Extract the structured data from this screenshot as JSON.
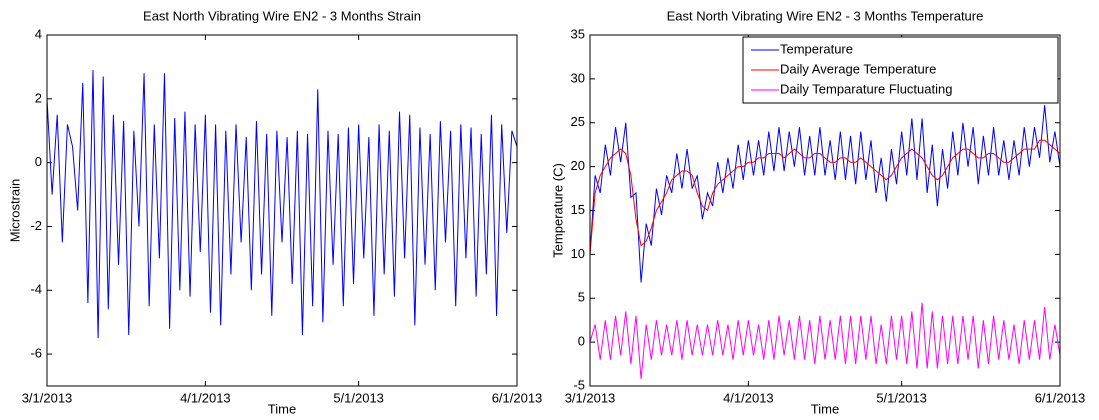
{
  "chart_data": [
    {
      "type": "line",
      "title": "East North Vibrating Wire EN2 - 3 Months Strain",
      "x_label": "Time",
      "y_label": "Microstrain",
      "x": [
        "2013-03-01",
        "2013-03-02",
        "2013-03-03",
        "2013-03-04",
        "2013-03-05",
        "2013-03-06",
        "2013-03-07",
        "2013-03-08",
        "2013-03-09",
        "2013-03-10",
        "2013-03-11",
        "2013-03-12",
        "2013-03-13",
        "2013-03-14",
        "2013-03-15",
        "2013-03-16",
        "2013-03-17",
        "2013-03-18",
        "2013-03-19",
        "2013-03-20",
        "2013-03-21",
        "2013-03-22",
        "2013-03-23",
        "2013-03-24",
        "2013-03-25",
        "2013-03-26",
        "2013-03-27",
        "2013-03-28",
        "2013-03-29",
        "2013-03-30",
        "2013-03-31",
        "2013-04-01",
        "2013-04-02",
        "2013-04-03",
        "2013-04-04",
        "2013-04-05",
        "2013-04-06",
        "2013-04-07",
        "2013-04-08",
        "2013-04-09",
        "2013-04-10",
        "2013-04-11",
        "2013-04-12",
        "2013-04-13",
        "2013-04-14",
        "2013-04-15",
        "2013-04-16",
        "2013-04-17",
        "2013-04-18",
        "2013-04-19",
        "2013-04-20",
        "2013-04-21",
        "2013-04-22",
        "2013-04-23",
        "2013-04-24",
        "2013-04-25",
        "2013-04-26",
        "2013-04-27",
        "2013-04-28",
        "2013-04-29",
        "2013-04-30",
        "2013-05-01",
        "2013-05-02",
        "2013-05-03",
        "2013-05-04",
        "2013-05-05",
        "2013-05-06",
        "2013-05-07",
        "2013-05-08",
        "2013-05-09",
        "2013-05-10",
        "2013-05-11",
        "2013-05-12",
        "2013-05-13",
        "2013-05-14",
        "2013-05-15",
        "2013-05-16",
        "2013-05-17",
        "2013-05-18",
        "2013-05-19",
        "2013-05-20",
        "2013-05-21",
        "2013-05-22",
        "2013-05-23",
        "2013-05-24",
        "2013-05-25",
        "2013-05-26",
        "2013-05-27",
        "2013-05-28",
        "2013-05-29",
        "2013-05-30",
        "2013-05-31",
        "2013-06-01"
      ],
      "xlim": [
        "2013-03-01",
        "2013-06-01"
      ],
      "xticks": [
        {
          "value": "2013-03-01",
          "label": "3/1/2013"
        },
        {
          "value": "2013-04-01",
          "label": "4/1/2013"
        },
        {
          "value": "2013-05-01",
          "label": "5/1/2013"
        },
        {
          "value": "2013-06-01",
          "label": "6/1/2013"
        }
      ],
      "ylim": [
        -7,
        4
      ],
      "yticks": [
        -6,
        -4,
        -2,
        0,
        2,
        4
      ],
      "series": [
        {
          "name": "Strain",
          "color": "#0000ff",
          "values": [
            2,
            -1,
            1.5,
            -2.5,
            1.2,
            0.5,
            -1.5,
            2.5,
            -4.4,
            2.9,
            -5.5,
            2.7,
            -4.6,
            1.5,
            -3.2,
            1.3,
            -5.4,
            1.0,
            -2.0,
            2.8,
            -4.5,
            1.2,
            -3.0,
            2.8,
            -5.2,
            1.4,
            -4.0,
            1.6,
            -4.2,
            1.2,
            -2.8,
            1.5,
            -4.7,
            1.2,
            -5.1,
            1.0,
            -3.5,
            1.2,
            -2.5,
            0.8,
            -4.0,
            1.3,
            -3.5,
            0.9,
            -4.8,
            1.0,
            -2.5,
            0.8,
            -3.8,
            1.0,
            -5.4,
            0.9,
            -4.5,
            2.3,
            -5.0,
            1.0,
            -3.2,
            0.9,
            -4.5,
            1.1,
            -3.8,
            1.2,
            -3.0,
            0.8,
            -4.8,
            1.2,
            -3.5,
            1.0,
            -4.2,
            1.6,
            -3.0,
            1.5,
            -5.1,
            1.1,
            -3.2,
            0.9,
            -4.0,
            1.3,
            -2.5,
            1.0,
            -4.5,
            1.2,
            -3.0,
            1.1,
            -4.2,
            0.9,
            -3.5,
            1.5,
            -4.8,
            1.2,
            -2.2,
            1.0,
            0.5
          ]
        }
      ]
    },
    {
      "type": "line",
      "title": "East North Vibrating Wire EN2 - 3 Months Temperature",
      "x_label": "Time",
      "y_label": "Temperature (C)",
      "x": [
        "2013-03-01",
        "2013-03-02",
        "2013-03-03",
        "2013-03-04",
        "2013-03-05",
        "2013-03-06",
        "2013-03-07",
        "2013-03-08",
        "2013-03-09",
        "2013-03-10",
        "2013-03-11",
        "2013-03-12",
        "2013-03-13",
        "2013-03-14",
        "2013-03-15",
        "2013-03-16",
        "2013-03-17",
        "2013-03-18",
        "2013-03-19",
        "2013-03-20",
        "2013-03-21",
        "2013-03-22",
        "2013-03-23",
        "2013-03-24",
        "2013-03-25",
        "2013-03-26",
        "2013-03-27",
        "2013-03-28",
        "2013-03-29",
        "2013-03-30",
        "2013-03-31",
        "2013-04-01",
        "2013-04-02",
        "2013-04-03",
        "2013-04-04",
        "2013-04-05",
        "2013-04-06",
        "2013-04-07",
        "2013-04-08",
        "2013-04-09",
        "2013-04-10",
        "2013-04-11",
        "2013-04-12",
        "2013-04-13",
        "2013-04-14",
        "2013-04-15",
        "2013-04-16",
        "2013-04-17",
        "2013-04-18",
        "2013-04-19",
        "2013-04-20",
        "2013-04-21",
        "2013-04-22",
        "2013-04-23",
        "2013-04-24",
        "2013-04-25",
        "2013-04-26",
        "2013-04-27",
        "2013-04-28",
        "2013-04-29",
        "2013-04-30",
        "2013-05-01",
        "2013-05-02",
        "2013-05-03",
        "2013-05-04",
        "2013-05-05",
        "2013-05-06",
        "2013-05-07",
        "2013-05-08",
        "2013-05-09",
        "2013-05-10",
        "2013-05-11",
        "2013-05-12",
        "2013-05-13",
        "2013-05-14",
        "2013-05-15",
        "2013-05-16",
        "2013-05-17",
        "2013-05-18",
        "2013-05-19",
        "2013-05-20",
        "2013-05-21",
        "2013-05-22",
        "2013-05-23",
        "2013-05-24",
        "2013-05-25",
        "2013-05-26",
        "2013-05-27",
        "2013-05-28",
        "2013-05-29",
        "2013-05-30",
        "2013-05-31",
        "2013-06-01"
      ],
      "xlim": [
        "2013-03-01",
        "2013-06-01"
      ],
      "xticks": [
        {
          "value": "2013-03-01",
          "label": "3/1/2013"
        },
        {
          "value": "2013-04-01",
          "label": "4/1/2013"
        },
        {
          "value": "2013-05-01",
          "label": "5/1/2013"
        },
        {
          "value": "2013-06-01",
          "label": "6/1/2013"
        }
      ],
      "ylim": [
        -5,
        35
      ],
      "yticks": [
        -5,
        0,
        5,
        10,
        15,
        20,
        25,
        30,
        35
      ],
      "legend": "upper right",
      "series": [
        {
          "name": "Temperature",
          "color": "#0000ff",
          "values": [
            10,
            19,
            17,
            22.5,
            19,
            24.5,
            20.5,
            25,
            16.5,
            17,
            6.8,
            13.5,
            11,
            17.5,
            14.5,
            19,
            17,
            21.5,
            17.5,
            22,
            17.5,
            19,
            14,
            17,
            15.5,
            20.5,
            17,
            21,
            17.5,
            22.5,
            18.5,
            23,
            19,
            23,
            19,
            24,
            19.5,
            24.5,
            19.5,
            24,
            20,
            24.5,
            19,
            23.5,
            19,
            24.5,
            19,
            23,
            18.5,
            24,
            18.5,
            23.5,
            18,
            24,
            18.5,
            23,
            17,
            21,
            16,
            22,
            18,
            24,
            19,
            25.5,
            18.5,
            25.5,
            17,
            22.5,
            15.5,
            22,
            17.5,
            24,
            19,
            25,
            20,
            24.5,
            18,
            23.5,
            19,
            24.5,
            19,
            23,
            18.5,
            23,
            19,
            24.5,
            20,
            24.5,
            21,
            27,
            20.5,
            24,
            20
          ]
        },
        {
          "name": "Daily Average Temperature",
          "color": "#ff0000",
          "values": [
            10,
            17,
            19,
            20,
            21,
            21.5,
            22,
            21.5,
            19,
            14,
            11,
            11.5,
            13,
            15,
            16,
            17,
            18.5,
            19,
            19.5,
            19.5,
            19,
            17,
            15.5,
            15,
            17,
            18,
            18.5,
            19,
            19.5,
            20,
            20,
            20.5,
            20.5,
            21,
            21,
            21.5,
            21.5,
            21.5,
            21,
            21.5,
            22,
            21.5,
            21,
            21,
            21.5,
            21.5,
            21,
            20.5,
            20.5,
            21,
            21,
            20.5,
            20.5,
            21,
            20.5,
            20,
            19.5,
            19,
            18.5,
            19,
            20,
            21,
            21.5,
            22,
            21.5,
            21,
            20,
            19,
            18.5,
            19,
            20,
            21,
            21.5,
            22,
            22,
            21.5,
            21,
            21,
            21.5,
            21.5,
            21,
            20.5,
            20.5,
            21,
            21.5,
            22,
            22,
            22,
            23,
            23,
            22.5,
            22,
            21.5
          ]
        },
        {
          "name": "Daily Temparature Fluctuating",
          "color": "#ff00ff",
          "values": [
            0,
            2,
            -2,
            2.5,
            -2,
            3,
            -1.5,
            3.5,
            -2.5,
            3,
            -4.2,
            2,
            -2,
            2.5,
            -1.5,
            2,
            -1.5,
            2.5,
            -2,
            2.5,
            -1.5,
            2,
            -1.5,
            2,
            -1.5,
            2.5,
            -1.5,
            2,
            -2,
            2.5,
            -1.5,
            2.5,
            -1.5,
            2,
            -2,
            2.5,
            -2,
            3,
            -1.5,
            2.5,
            -2,
            3,
            -2,
            2.5,
            -2.5,
            3,
            -2,
            2.5,
            -2,
            3,
            -2.5,
            3,
            -2.5,
            3,
            -2,
            3,
            -2.5,
            2,
            -2.5,
            3,
            -2,
            3,
            -2.5,
            3.5,
            -3,
            4.5,
            -3,
            3.5,
            -3,
            3,
            -2.5,
            3,
            -2.5,
            3,
            -2,
            3,
            -3,
            2.5,
            -2.5,
            3,
            -2,
            2.5,
            -2,
            2,
            -2.5,
            2.5,
            -2,
            2.5,
            -2,
            4,
            -2,
            2,
            -1.5
          ]
        }
      ]
    }
  ]
}
